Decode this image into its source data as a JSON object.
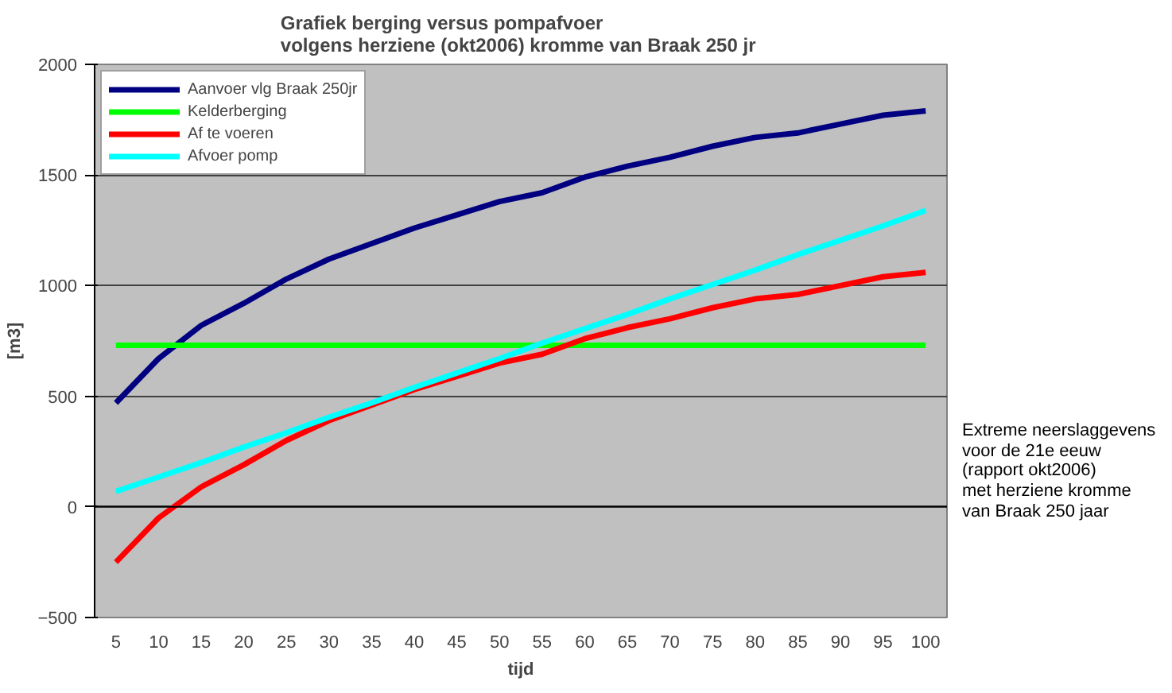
{
  "chart_data": {
    "type": "line",
    "title": "Grafiek berging versus pompafvoer\nvolgens herziene (okt2006)  kromme van Braak 250 jr",
    "xlabel": "tijd",
    "ylabel": "[m3]",
    "categories": [
      "5",
      "10",
      "15",
      "20",
      "25",
      "30",
      "35",
      "40",
      "45",
      "50",
      "55",
      "60",
      "65",
      "70",
      "75",
      "80",
      "85",
      "90",
      "95",
      "100"
    ],
    "series": [
      {
        "name": "Aanvoer vlg Braak 250jr",
        "color": "#000080",
        "values": [
          470,
          670,
          820,
          920,
          1030,
          1120,
          1190,
          1260,
          1320,
          1380,
          1420,
          1490,
          1540,
          1580,
          1630,
          1670,
          1690,
          1730,
          1770,
          1790
        ]
      },
      {
        "name": "Kelderberging",
        "color": "#00ff00",
        "values": [
          730,
          730,
          730,
          730,
          730,
          730,
          730,
          730,
          730,
          730,
          730,
          730,
          730,
          730,
          730,
          730,
          730,
          730,
          730,
          730
        ]
      },
      {
        "name": "Af te voeren",
        "color": "#ff0000",
        "values": [
          -250,
          -50,
          90,
          190,
          300,
          390,
          460,
          530,
          590,
          650,
          690,
          760,
          810,
          850,
          900,
          940,
          960,
          1000,
          1040,
          1060
        ]
      },
      {
        "name": "Afvoer pomp",
        "color": "#00ffff",
        "values": [
          70,
          135,
          200,
          270,
          335,
          405,
          470,
          540,
          605,
          670,
          740,
          805,
          870,
          940,
          1005,
          1070,
          1140,
          1205,
          1270,
          1340
        ]
      }
    ],
    "ylim": [
      -500,
      2000
    ],
    "yticks": [
      -500,
      0,
      500,
      1000,
      1500,
      2000
    ],
    "grid": "y",
    "legend": "top left",
    "marker": "none",
    "line_style": "solid",
    "annotations": [
      "Extreme neerslaggevens\nvoor de 21e eeuw\n(rapport okt2006)\nmet herziene kromme\nvan Braak 250 jaar"
    ]
  }
}
